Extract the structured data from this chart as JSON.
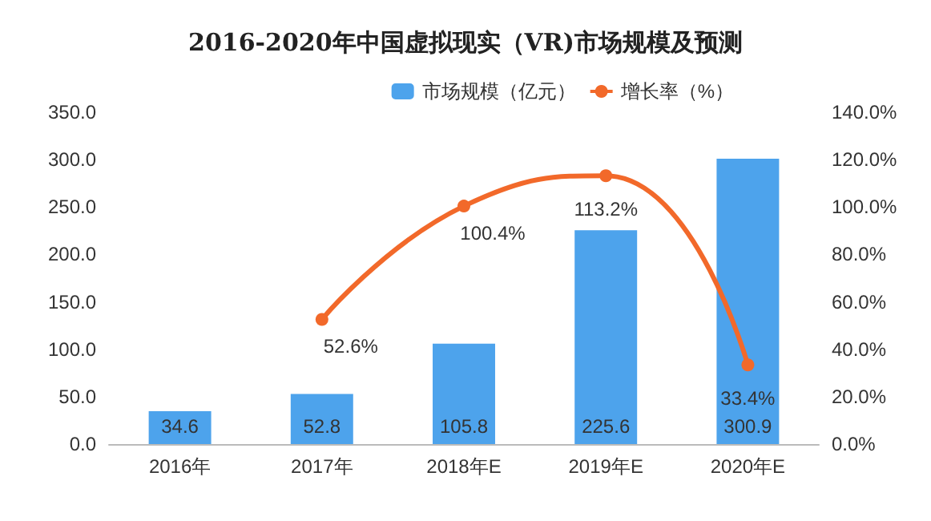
{
  "chart_data": {
    "type": "bar",
    "title": "2016-2020年中国虚拟现实（VR)市场规模及预测",
    "categories": [
      "2016年",
      "2017年",
      "2018年E",
      "2019年E",
      "2020年E"
    ],
    "series": [
      {
        "name": "市场规模（亿元）",
        "color": "#4da3ec",
        "values": [
          34.6,
          52.8,
          105.8,
          225.6,
          300.9
        ]
      },
      {
        "name": "增长率（%）",
        "type": "line",
        "axis": "y2",
        "color": "#f2692a",
        "marker": "circle",
        "values": [
          null,
          52.6,
          100.4,
          113.2,
          33.4
        ],
        "value_labels": [
          null,
          "52.6%",
          "100.4%",
          "113.2%",
          "33.4%"
        ]
      }
    ],
    "ylim": [
      0,
      350
    ],
    "yticks": [
      {
        "value": 0,
        "label": "0.0"
      },
      {
        "value": 50,
        "label": "50.0"
      },
      {
        "value": 100,
        "label": "100.0"
      },
      {
        "value": 150,
        "label": "150.0"
      },
      {
        "value": 200,
        "label": "200.0"
      },
      {
        "value": 250,
        "label": "250.0"
      },
      {
        "value": 300,
        "label": "300.0"
      },
      {
        "value": 350,
        "label": "350.0"
      }
    ],
    "y2lim": [
      0,
      140
    ],
    "y2ticks": [
      {
        "value": 0,
        "label": "0.0%"
      },
      {
        "value": 20,
        "label": "20.0%"
      },
      {
        "value": 40,
        "label": "40.0%"
      },
      {
        "value": 60,
        "label": "60.0%"
      },
      {
        "value": 80,
        "label": "80.0%"
      },
      {
        "value": 100,
        "label": "100.0%"
      },
      {
        "value": 120,
        "label": "120.0%"
      },
      {
        "value": 140,
        "label": "140.0%"
      }
    ],
    "data_labels": true,
    "legend": "top right",
    "grid": false
  }
}
